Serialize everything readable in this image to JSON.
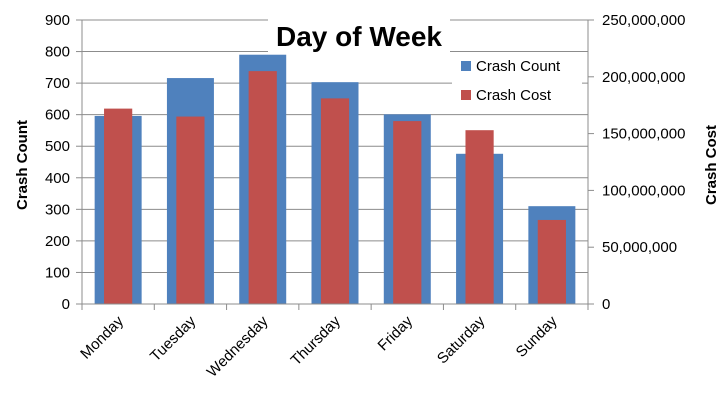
{
  "chart_data": {
    "type": "bar",
    "title": "Day of Week",
    "categories": [
      "Monday",
      "Tuesday",
      "Wednesday",
      "Thursday",
      "Friday",
      "Saturday",
      "Sunday"
    ],
    "y_left": {
      "label": "Crash Count",
      "range": [
        0,
        900
      ],
      "ticks": [
        0,
        100,
        200,
        300,
        400,
        500,
        600,
        700,
        800,
        900
      ],
      "tick_labels": [
        "0",
        "100",
        "200",
        "300",
        "400",
        "500",
        "600",
        "700",
        "800",
        "900"
      ]
    },
    "y_right": {
      "label": "Crash Cost",
      "range": [
        0,
        250000000
      ],
      "ticks": [
        0,
        50000000,
        100000000,
        150000000,
        200000000,
        250000000
      ],
      "tick_labels": [
        "0",
        "50,000,000",
        "100,000,000",
        "150,000,000",
        "200,000,000",
        "250,000,000"
      ]
    },
    "series": [
      {
        "name": "Crash Count",
        "axis": "left",
        "color": "#4f81bd",
        "values": [
          596,
          716,
          790,
          703,
          601,
          476,
          310
        ]
      },
      {
        "name": "Crash Cost",
        "axis": "right",
        "color": "#c0504d",
        "values": [
          172000000,
          165000000,
          205000000,
          181000000,
          161000000,
          153000000,
          74000000
        ]
      }
    ],
    "legend": "top-right",
    "grid": true
  }
}
